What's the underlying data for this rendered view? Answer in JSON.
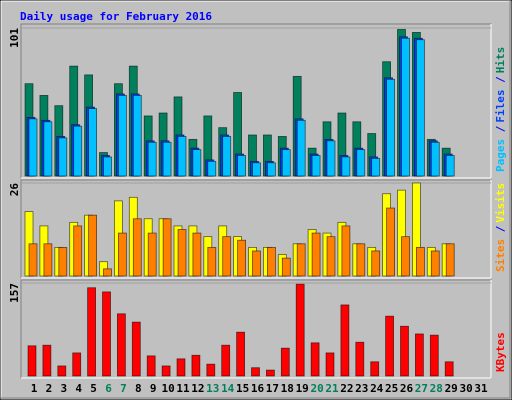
{
  "title": "Daily usage for February 2016",
  "legend_separator": "/",
  "chart_data": [
    {
      "type": "bar",
      "ylim": [
        0,
        101
      ],
      "yticks": [
        101
      ],
      "series": [
        {
          "name": "Pages",
          "color": "#00c0ff",
          "values": [
            39,
            37,
            26,
            34,
            46,
            13,
            55,
            55,
            23,
            23,
            27,
            18,
            10,
            27,
            14,
            9,
            9,
            18,
            38,
            14,
            24,
            13,
            18,
            12,
            66,
            94,
            93,
            23,
            14,
            null,
            null
          ]
        },
        {
          "name": "Files",
          "color": "#0040ff",
          "values": [
            40,
            38,
            27,
            35,
            47,
            14,
            56,
            56,
            24,
            24,
            28,
            19,
            11,
            28,
            15,
            10,
            10,
            19,
            39,
            15,
            25,
            14,
            19,
            13,
            67,
            95,
            94,
            24,
            15,
            null,
            null
          ]
        },
        {
          "name": "Hits",
          "color": "#00805c",
          "values": [
            63,
            55,
            48,
            75,
            69,
            16,
            63,
            75,
            41,
            43,
            54,
            25,
            41,
            33,
            57,
            28,
            28,
            27,
            68,
            19,
            37,
            43,
            37,
            29,
            78,
            100,
            98,
            25,
            19,
            null,
            null
          ]
        }
      ]
    },
    {
      "type": "bar",
      "ylim": [
        0,
        26
      ],
      "yticks": [
        26
      ],
      "series": [
        {
          "name": "Sites",
          "color": "#ff8000",
          "values": [
            9,
            9,
            8,
            14,
            17,
            2,
            12,
            16,
            12,
            16,
            13,
            12,
            8,
            11,
            10,
            7,
            8,
            5,
            9,
            12,
            11,
            14,
            9,
            7,
            19,
            11,
            8,
            7,
            9,
            null,
            null
          ]
        },
        {
          "name": "Visits",
          "color": "#ffff00",
          "values": [
            18,
            14,
            8,
            15,
            17,
            4,
            21,
            22,
            16,
            16,
            14,
            14,
            11,
            14,
            11,
            8,
            8,
            6,
            9,
            13,
            12,
            15,
            9,
            8,
            23,
            24,
            26,
            8,
            9,
            null,
            null
          ]
        }
      ]
    },
    {
      "type": "bar",
      "ylim": [
        0,
        157
      ],
      "yticks": [
        157
      ],
      "categories": [
        "1",
        "2",
        "3",
        "4",
        "5",
        "6",
        "7",
        "8",
        "9",
        "10",
        "11",
        "12",
        "13",
        "14",
        "15",
        "16",
        "17",
        "18",
        "19",
        "20",
        "21",
        "22",
        "23",
        "24",
        "25",
        "26",
        "27",
        "28",
        "29",
        "30",
        "31"
      ],
      "category_colors": [
        "#000000",
        "#000000",
        "#000000",
        "#000000",
        "#000000",
        "#00805c",
        "#00805c",
        "#000000",
        "#000000",
        "#000000",
        "#000000",
        "#000000",
        "#00805c",
        "#00805c",
        "#000000",
        "#000000",
        "#000000",
        "#000000",
        "#000000",
        "#00805c",
        "#00805c",
        "#000000",
        "#000000",
        "#000000",
        "#000000",
        "#000000",
        "#00805c",
        "#00805c",
        "#000000",
        "#000000",
        "#000000"
      ],
      "series": [
        {
          "name": "KBytes",
          "color": "#ff0000",
          "values": [
            51,
            52,
            17,
            39,
            149,
            142,
            105,
            91,
            34,
            17,
            29,
            35,
            20,
            52,
            74,
            14,
            10,
            47,
            155,
            56,
            39,
            120,
            57,
            24,
            101,
            84,
            71,
            69,
            24,
            null,
            null
          ]
        }
      ]
    }
  ]
}
